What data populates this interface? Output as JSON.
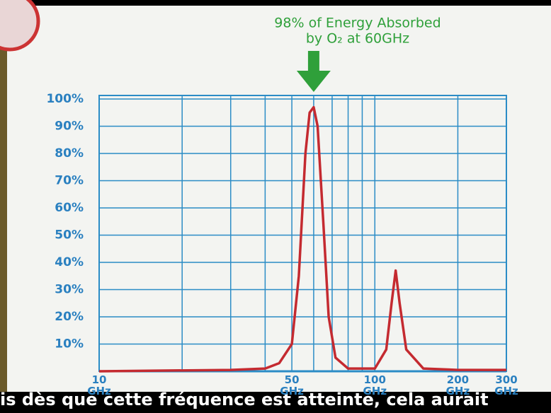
{
  "chart_data": {
    "type": "line",
    "annotation": [
      "98% of Energy Absorbed",
      "by O₂ at 60GHz"
    ],
    "x": [
      10,
      30,
      40,
      45,
      50,
      53,
      56,
      58,
      60,
      62,
      65,
      68,
      72,
      80,
      100,
      110,
      115,
      119,
      123,
      130,
      150,
      200,
      300
    ],
    "values": [
      0,
      0.5,
      1,
      3,
      10,
      35,
      80,
      95,
      97,
      90,
      55,
      20,
      5,
      1,
      1,
      8,
      25,
      37,
      25,
      8,
      1,
      0.5,
      0.5
    ],
    "color": "#c42a30",
    "xscale": "log",
    "xlim": [
      10,
      300
    ],
    "xticks": [
      {
        "value": 10,
        "label": "10 GHz"
      },
      {
        "value": 50,
        "label": "50 GHz"
      },
      {
        "value": 100,
        "label": "100 GHz"
      },
      {
        "value": 200,
        "label": "200 GHz"
      },
      {
        "value": 300,
        "label": "300 GHz"
      }
    ],
    "xgrid": [
      20,
      30,
      40,
      60,
      70,
      80,
      90
    ],
    "ylim": [
      0,
      100
    ],
    "yticks": [
      {
        "value": 10,
        "label": "10%"
      },
      {
        "value": 20,
        "label": "20%"
      },
      {
        "value": 30,
        "label": "30%"
      },
      {
        "value": 40,
        "label": "40%"
      },
      {
        "value": 50,
        "label": "50%"
      },
      {
        "value": 60,
        "label": "60%"
      },
      {
        "value": 70,
        "label": "70%"
      },
      {
        "value": 80,
        "label": "80%"
      },
      {
        "value": 90,
        "label": "90%"
      },
      {
        "value": 100,
        "label": "100%"
      }
    ],
    "grid": true,
    "grid_color": "#2b8cc6",
    "label_color": "#2a80c0",
    "annotation_color": "#2fa03a"
  },
  "caption": "is dès que cette fréquence est atteinte, cela aurait"
}
